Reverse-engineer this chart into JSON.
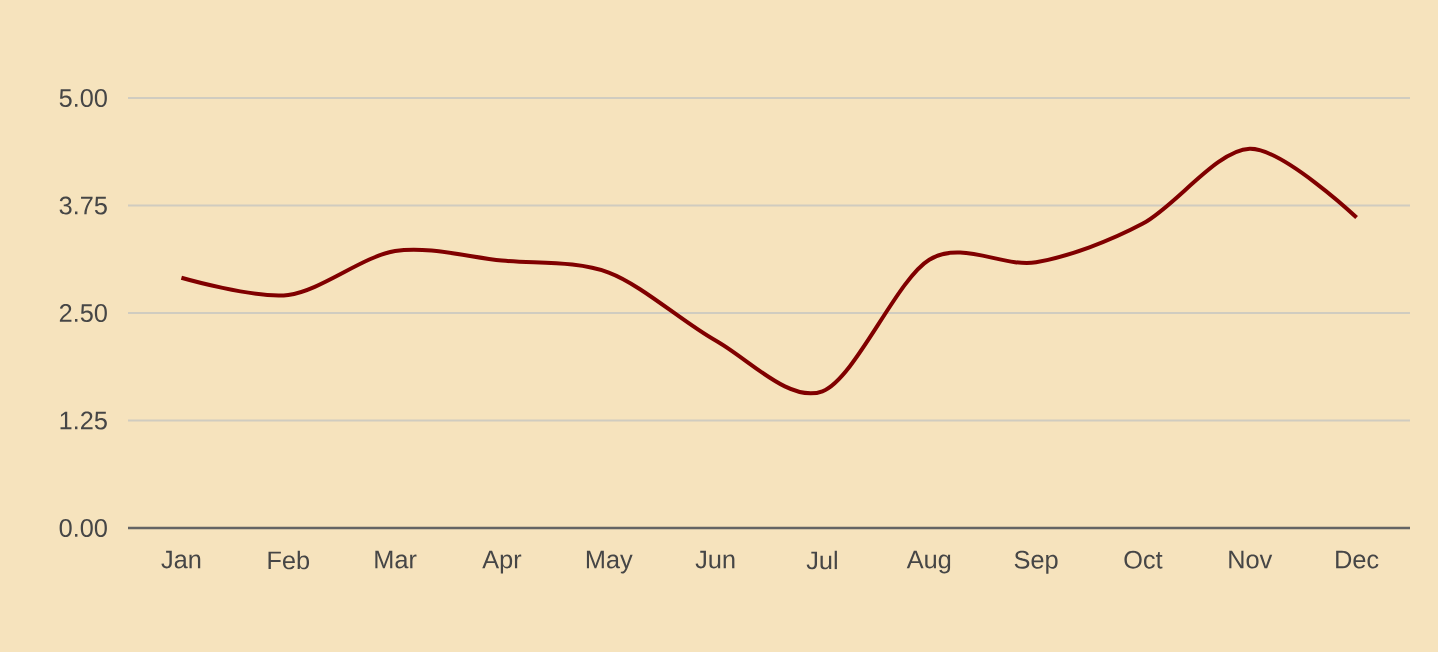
{
  "chart_data": {
    "type": "line",
    "categories": [
      "Jan",
      "Feb",
      "Mar",
      "Apr",
      "May",
      "Jun",
      "Jul",
      "Aug",
      "Sep",
      "Oct",
      "Nov",
      "Dec"
    ],
    "series": [
      {
        "color": "#800000",
        "values": [
          2.91,
          2.71,
          3.22,
          3.11,
          2.97,
          2.18,
          1.59,
          3.12,
          3.09,
          3.54,
          4.41,
          3.61
        ]
      }
    ],
    "ylim": [
      0,
      5
    ],
    "yticks": [
      {
        "value": 0,
        "label": "0.00"
      },
      {
        "value": 1.25,
        "label": "1.25"
      },
      {
        "value": 2.5,
        "label": "2.50"
      },
      {
        "value": 3.75,
        "label": "3.75"
      },
      {
        "value": 5,
        "label": "5.00"
      }
    ],
    "grid": "y"
  }
}
